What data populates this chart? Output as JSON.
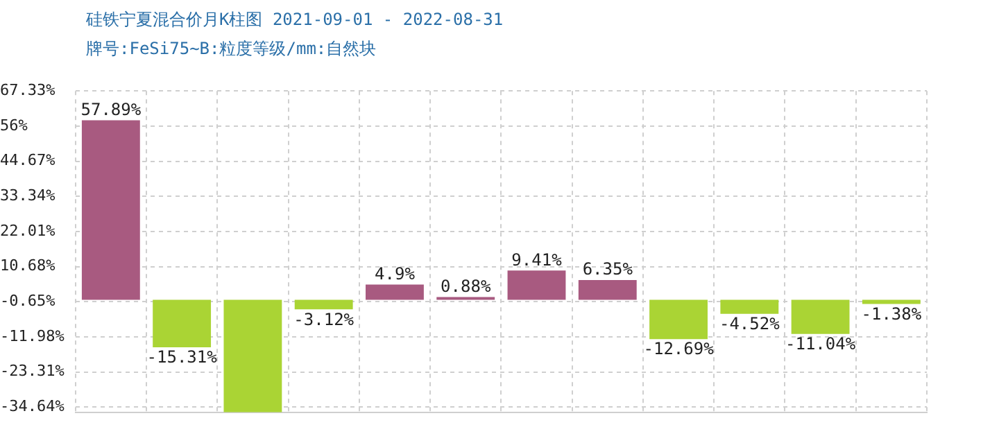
{
  "chart_data": {
    "type": "bar",
    "title": "硅铁宁夏混合价月K柱图 2021-09-01 - 2022-08-31",
    "subtitle": "牌号:FeSi75~B:粒度等级/mm:自然块",
    "categories": [
      null,
      null,
      null,
      null,
      null,
      null,
      null,
      null,
      null,
      null,
      null,
      null
    ],
    "values": [
      57.89,
      -15.31,
      -36.3,
      -3.12,
      4.9,
      0.88,
      9.41,
      6.35,
      -12.69,
      -4.52,
      -11.04,
      -1.38
    ],
    "value_labels": [
      "57.89%",
      "-15.31%",
      null,
      "-3.12%",
      "4.9%",
      "0.88%",
      "9.41%",
      "6.35%",
      "-12.69%",
      "-4.52%",
      "-11.04%",
      "-1.38%"
    ],
    "colors": [
      "#a85a80",
      "#aad434",
      "#aad434",
      "#aad434",
      "#a85a80",
      "#a85a80",
      "#a85a80",
      "#a85a80",
      "#aad434",
      "#aad434",
      "#aad434",
      "#aad434"
    ],
    "ylim": [
      -36.3,
      67.33
    ],
    "yticks": [
      {
        "value": 67.33,
        "label": "67.33%"
      },
      {
        "value": 56,
        "label": "56%"
      },
      {
        "value": 44.67,
        "label": "44.67%"
      },
      {
        "value": 33.34,
        "label": "33.34%"
      },
      {
        "value": 22.01,
        "label": "22.01%"
      },
      {
        "value": 10.68,
        "label": "10.68%"
      },
      {
        "value": -0.65,
        "label": "-0.65%"
      },
      {
        "value": -11.98,
        "label": "-11.98%"
      },
      {
        "value": -23.31,
        "label": "-23.31%"
      },
      {
        "value": -34.64,
        "label": "-34.64%"
      }
    ],
    "grid": true,
    "legend": false,
    "tick_labels": "y"
  }
}
